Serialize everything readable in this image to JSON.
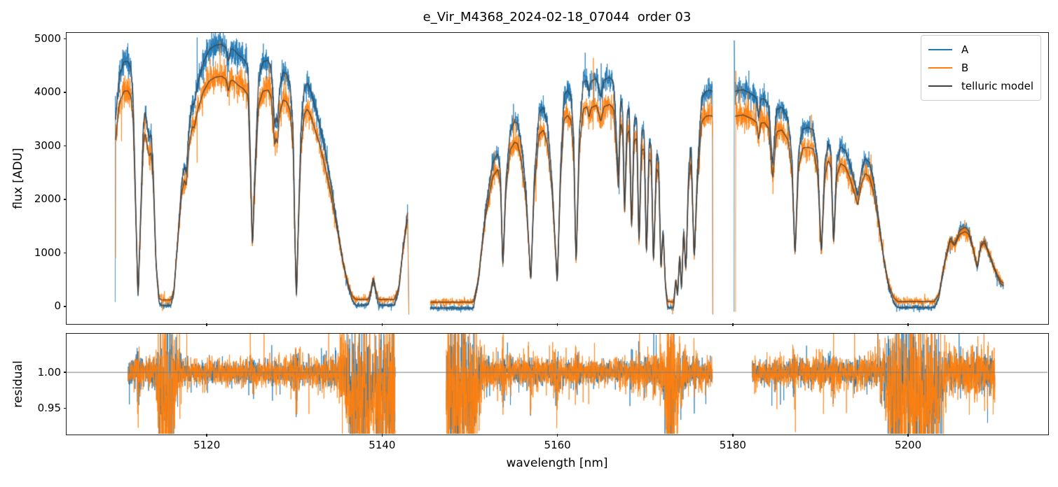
{
  "title": "e_Vir_M4368_2024-02-18_07044  order 03",
  "axes": {
    "flux_ylabel": "flux [ADU]",
    "residual_ylabel": "residual",
    "xlabel": "wavelength [nm]",
    "xtick_labels": [
      "5120",
      "5140",
      "5160",
      "5180",
      "5200"
    ],
    "flux_ytick_labels": [
      "0",
      "1000",
      "2000",
      "3000",
      "4000",
      "5000"
    ],
    "residual_ytick_labels": [
      "0.95",
      "1.00"
    ]
  },
  "legend": {
    "items": [
      {
        "label": "A",
        "color": "#1f77b4"
      },
      {
        "label": "B",
        "color": "#ff7f0e"
      },
      {
        "label": "telluric model",
        "color": "#3f3f3f"
      }
    ]
  },
  "chart_data": {
    "type": "line",
    "title": "e_Vir_M4368_2024-02-18_07044  order 03",
    "xlabel": "wavelength [nm]",
    "ylabel_top": "flux [ADU]",
    "ylabel_bottom": "residual",
    "legend_position": "upper right",
    "grid": false,
    "xlim": [
      5104.0,
      5215.9
    ],
    "xticks": [
      5120,
      5140,
      5160,
      5180,
      5200
    ],
    "flux_ylim": [
      -315,
      5110
    ],
    "flux_yticks": [
      0,
      1000,
      2000,
      3000,
      4000,
      5000
    ],
    "residual_ylim": [
      0.914,
      1.054
    ],
    "residual_yticks": [
      0.95,
      1.0
    ],
    "residual_hline": 1.0,
    "colors": {
      "A": "#1f77b4",
      "B": "#ff7f0e",
      "model": "#3f3f3f",
      "hline": "#7a7a7a"
    },
    "b_from_a": {
      "scale": 0.15,
      "knee": 900,
      "offset_lowflux": 110,
      "lowflux_tau": 500
    },
    "noise": {
      "seed": 20240218,
      "flux_base": 25,
      "flux_frac": 0.021,
      "b_factor": 1.25,
      "tail_p": 0.028,
      "tail_mult": 2.8,
      "res_sigma_A": 0.009,
      "res_sigma_B": 0.0115,
      "res_ref_flux": 3000,
      "res_min_flux": 120,
      "res_lowflux_bias_below": 700
    },
    "sample_step_nm": 0.016,
    "segments": [
      {
        "name": "order-chunk-1",
        "range": [
          5109.6,
          5143.05
        ],
        "residual_range": [
          5111.0,
          5141.5
        ],
        "spike_A": {
          "x": 5109.55,
          "from": 80,
          "to": 3930
        },
        "spike_B": {
          "x": 5109.6,
          "from": 900,
          "to": 3400
        },
        "end_drop": -150,
        "model_A": [
          [
            5109.6,
            3500
          ],
          [
            5110.0,
            4300
          ],
          [
            5110.55,
            4570
          ],
          [
            5111.0,
            4580
          ],
          [
            5111.35,
            4450
          ],
          [
            5111.6,
            3900
          ],
          [
            5111.9,
            1800
          ],
          [
            5112.15,
            70
          ],
          [
            5112.45,
            1700
          ],
          [
            5112.75,
            3350
          ],
          [
            5112.95,
            3660
          ],
          [
            5113.15,
            3420
          ],
          [
            5113.4,
            3140
          ],
          [
            5113.65,
            3230
          ],
          [
            5113.9,
            2500
          ],
          [
            5114.2,
            800
          ],
          [
            5114.55,
            60
          ],
          [
            5114.8,
            15
          ],
          [
            5115.9,
            15
          ],
          [
            5116.25,
            250
          ],
          [
            5116.7,
            1300
          ],
          [
            5117.15,
            2350
          ],
          [
            5117.45,
            2620
          ],
          [
            5117.65,
            2480
          ],
          [
            5118.0,
            3400
          ],
          [
            5118.35,
            3800
          ],
          [
            5118.55,
            3760
          ],
          [
            5119.0,
            4180
          ],
          [
            5119.6,
            4560
          ],
          [
            5120.3,
            4800
          ],
          [
            5121.0,
            4880
          ],
          [
            5121.7,
            4900
          ],
          [
            5122.2,
            4830
          ],
          [
            5122.45,
            4560
          ],
          [
            5122.7,
            4800
          ],
          [
            5123.0,
            4810
          ],
          [
            5123.6,
            4700
          ],
          [
            5124.2,
            4620
          ],
          [
            5124.7,
            4480
          ],
          [
            5125.0,
            2600
          ],
          [
            5125.2,
            1060
          ],
          [
            5125.45,
            2400
          ],
          [
            5125.9,
            4250
          ],
          [
            5126.4,
            4570
          ],
          [
            5127.0,
            4600
          ],
          [
            5127.35,
            4430
          ],
          [
            5127.6,
            3800
          ],
          [
            5127.75,
            3360
          ],
          [
            5127.9,
            3560
          ],
          [
            5128.05,
            3400
          ],
          [
            5128.3,
            4080
          ],
          [
            5128.7,
            4380
          ],
          [
            5129.1,
            4340
          ],
          [
            5129.5,
            4150
          ],
          [
            5129.85,
            3300
          ],
          [
            5130.05,
            1300
          ],
          [
            5130.22,
            40
          ],
          [
            5130.45,
            1600
          ],
          [
            5130.75,
            3350
          ],
          [
            5131.1,
            4060
          ],
          [
            5131.45,
            4180
          ],
          [
            5131.85,
            4040
          ],
          [
            5132.3,
            3750
          ],
          [
            5132.9,
            3380
          ],
          [
            5133.5,
            2900
          ],
          [
            5134.1,
            2350
          ],
          [
            5134.8,
            1600
          ],
          [
            5135.5,
            850
          ],
          [
            5136.1,
            380
          ],
          [
            5136.6,
            110
          ],
          [
            5137.0,
            25
          ],
          [
            5138.4,
            25
          ],
          [
            5138.7,
            220
          ],
          [
            5139.0,
            510
          ],
          [
            5139.3,
            220
          ],
          [
            5139.6,
            25
          ],
          [
            5141.4,
            25
          ],
          [
            5141.9,
            300
          ],
          [
            5142.4,
            1100
          ],
          [
            5142.9,
            1760
          ]
        ]
      },
      {
        "name": "order-chunk-2",
        "range": [
          5145.5,
          5177.72
        ],
        "residual_range": [
          5147.3,
          5177.7
        ],
        "spike_A": null,
        "spike_B": null,
        "end_drop": -150,
        "model_A": [
          [
            5145.5,
            -30
          ],
          [
            5150.4,
            -30
          ],
          [
            5151.0,
            500
          ],
          [
            5151.8,
            1800
          ],
          [
            5152.6,
            2680
          ],
          [
            5153.2,
            2860
          ],
          [
            5153.5,
            2500
          ],
          [
            5153.77,
            660
          ],
          [
            5154.1,
            2300
          ],
          [
            5154.6,
            3280
          ],
          [
            5155.1,
            3450
          ],
          [
            5155.45,
            3420
          ],
          [
            5155.9,
            3000
          ],
          [
            5156.4,
            2200
          ],
          [
            5156.96,
            420
          ],
          [
            5157.35,
            2400
          ],
          [
            5157.9,
            3620
          ],
          [
            5158.4,
            3720
          ],
          [
            5158.9,
            3350
          ],
          [
            5159.4,
            2300
          ],
          [
            5159.98,
            380
          ],
          [
            5160.35,
            2600
          ],
          [
            5160.75,
            3950
          ],
          [
            5161.15,
            4040
          ],
          [
            5161.55,
            3930
          ],
          [
            5161.85,
            3200
          ],
          [
            5162.12,
            700
          ],
          [
            5162.5,
            3300
          ],
          [
            5162.95,
            4180
          ],
          [
            5163.35,
            4230
          ],
          [
            5163.6,
            3990
          ],
          [
            5163.85,
            4210
          ],
          [
            5164.45,
            4260
          ],
          [
            5164.95,
            3900
          ],
          [
            5165.3,
            4230
          ],
          [
            5165.95,
            4280
          ],
          [
            5166.4,
            4190
          ],
          [
            5166.7,
            3300
          ],
          [
            5166.95,
            2350
          ],
          [
            5167.2,
            3880
          ],
          [
            5167.45,
            3650
          ],
          [
            5167.65,
            1750
          ],
          [
            5167.95,
            3620
          ],
          [
            5168.2,
            3720
          ],
          [
            5168.45,
            1400
          ],
          [
            5168.75,
            3480
          ],
          [
            5169.05,
            3540
          ],
          [
            5169.3,
            1080
          ],
          [
            5169.6,
            3280
          ],
          [
            5169.9,
            3300
          ],
          [
            5170.15,
            850
          ],
          [
            5170.45,
            3080
          ],
          [
            5170.7,
            3020
          ],
          [
            5170.95,
            700
          ],
          [
            5171.3,
            2880
          ],
          [
            5171.55,
            2760
          ],
          [
            5171.8,
            620
          ],
          [
            5172.05,
            1500
          ],
          [
            5172.3,
            400
          ],
          [
            5172.55,
            -20
          ],
          [
            5173.25,
            -30
          ],
          [
            5173.5,
            500
          ],
          [
            5173.7,
            150
          ],
          [
            5173.95,
            1000
          ],
          [
            5174.15,
            250
          ],
          [
            5174.4,
            1500
          ],
          [
            5174.65,
            600
          ],
          [
            5174.95,
            2500
          ],
          [
            5175.25,
            3040
          ],
          [
            5175.6,
            820
          ],
          [
            5175.95,
            2500
          ],
          [
            5176.45,
            3900
          ],
          [
            5176.95,
            4020
          ],
          [
            5177.5,
            4040
          ],
          [
            5177.68,
            4010
          ]
        ]
      },
      {
        "name": "order-chunk-3",
        "range": [
          5180.15,
          5210.9
        ],
        "residual_range": [
          5182.2,
          5209.9
        ],
        "spike_A": {
          "x": 5180.15,
          "from": -100,
          "to": 4970
        },
        "spike_B": {
          "x": 5180.32,
          "from": -100,
          "to": 4400
        },
        "end_drop": null,
        "model_A": [
          [
            5180.25,
            4020
          ],
          [
            5181.2,
            4050
          ],
          [
            5182.0,
            3980
          ],
          [
            5182.3,
            3950
          ],
          [
            5182.75,
            3880
          ],
          [
            5182.95,
            3480
          ],
          [
            5183.2,
            3870
          ],
          [
            5183.6,
            3880
          ],
          [
            5184.1,
            3750
          ],
          [
            5184.55,
            2620
          ],
          [
            5185.0,
            3680
          ],
          [
            5185.6,
            3720
          ],
          [
            5186.3,
            3500
          ],
          [
            5186.75,
            2800
          ],
          [
            5187.1,
            890
          ],
          [
            5187.5,
            2900
          ],
          [
            5188.0,
            3320
          ],
          [
            5188.6,
            3340
          ],
          [
            5189.2,
            3300
          ],
          [
            5189.7,
            2700
          ],
          [
            5190.1,
            950
          ],
          [
            5190.5,
            2700
          ],
          [
            5190.9,
            3050
          ],
          [
            5191.2,
            2900
          ],
          [
            5191.5,
            1130
          ],
          [
            5191.85,
            2700
          ],
          [
            5192.3,
            2980
          ],
          [
            5192.8,
            2920
          ],
          [
            5193.3,
            2700
          ],
          [
            5193.8,
            2380
          ],
          [
            5194.25,
            2060
          ],
          [
            5194.7,
            2550
          ],
          [
            5195.1,
            2760
          ],
          [
            5195.55,
            2700
          ],
          [
            5196.0,
            2400
          ],
          [
            5196.6,
            1700
          ],
          [
            5197.2,
            900
          ],
          [
            5197.8,
            350
          ],
          [
            5198.4,
            60
          ],
          [
            5198.8,
            -20
          ],
          [
            5203.0,
            -20
          ],
          [
            5203.5,
            150
          ],
          [
            5204.1,
            750
          ],
          [
            5204.8,
            1280
          ],
          [
            5205.3,
            1160
          ],
          [
            5205.9,
            1420
          ],
          [
            5206.5,
            1480
          ],
          [
            5206.9,
            1420
          ],
          [
            5207.4,
            1100
          ],
          [
            5207.9,
            700
          ],
          [
            5208.3,
            1150
          ],
          [
            5208.7,
            1230
          ],
          [
            5209.2,
            1000
          ],
          [
            5209.7,
            750
          ],
          [
            5210.2,
            550
          ],
          [
            5210.6,
            420
          ],
          [
            5210.9,
            380
          ]
        ]
      }
    ]
  }
}
